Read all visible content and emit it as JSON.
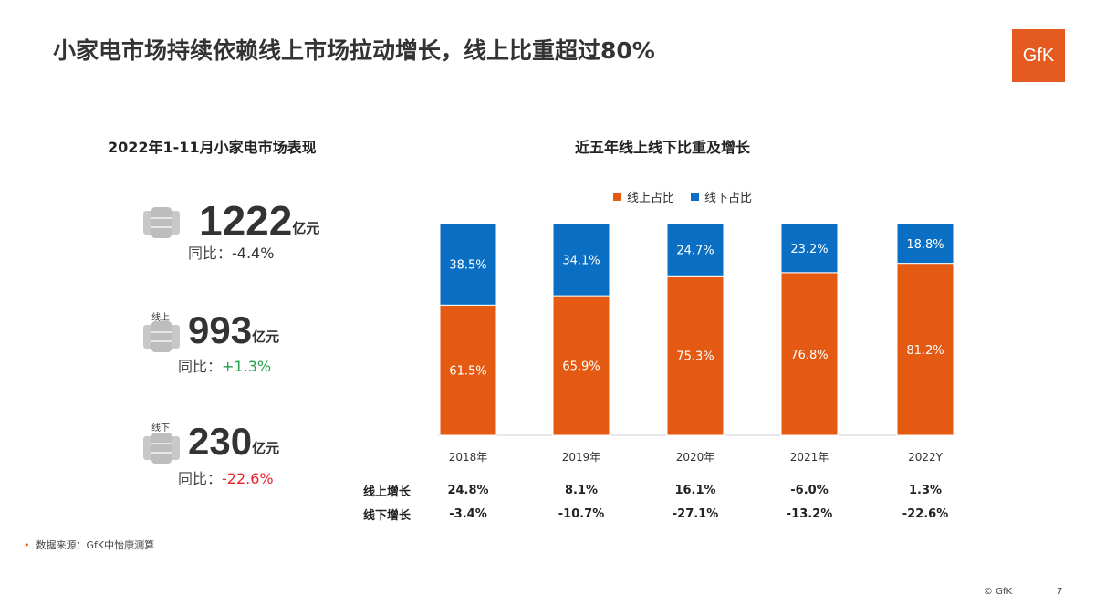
{
  "title": "小家电市场持续依赖线上市场拉动增长，线上比重超过80%",
  "logo": "GfK",
  "left": {
    "subtitle": "2022年1-11月小家电市场表现",
    "items": [
      {
        "tag": "",
        "value": "1222",
        "unit": "亿元",
        "yoy_label": "同比：",
        "yoy": "-4.4%",
        "yoy_color": "#333333"
      },
      {
        "tag": "线上",
        "value": "993",
        "unit": "亿元",
        "yoy_label": "同比：",
        "yoy": "+1.3%",
        "yoy_color": "#22a04b"
      },
      {
        "tag": "线下",
        "value": "230",
        "unit": "亿元",
        "yoy_label": "同比：",
        "yoy": "-22.6%",
        "yoy_color": "#e8212b"
      }
    ]
  },
  "chart_data": {
    "type": "bar",
    "stacked": true,
    "title": "近五年线上线下比重及增长",
    "categories": [
      "2018年",
      "2019年",
      "2020年",
      "2021年",
      "2022Y"
    ],
    "series": [
      {
        "name": "线上占比",
        "color": "#e55a12",
        "values": [
          61.5,
          65.9,
          75.3,
          76.8,
          81.2
        ],
        "labels": [
          "61.5%",
          "65.9%",
          "75.3%",
          "76.8%",
          "81.2%"
        ]
      },
      {
        "name": "线下占比",
        "color": "#0a6fc2",
        "values": [
          38.5,
          34.1,
          24.7,
          23.2,
          18.8
        ],
        "labels": [
          "38.5%",
          "34.1%",
          "24.7%",
          "23.2%",
          "18.8%"
        ]
      }
    ],
    "ylim": [
      0,
      100
    ],
    "legend": "top-center"
  },
  "growth_table": {
    "rows": [
      {
        "label": "线上增长",
        "values": [
          "24.8%",
          "8.1%",
          "16.1%",
          "-6.0%",
          "1.3%"
        ]
      },
      {
        "label": "线下增长",
        "values": [
          "-3.4%",
          "-10.7%",
          "-27.1%",
          "-13.2%",
          "-22.6%"
        ]
      }
    ]
  },
  "footer": {
    "source": "数据来源：GfK中怡康测算",
    "copyright": "© GfK",
    "page": "7"
  }
}
